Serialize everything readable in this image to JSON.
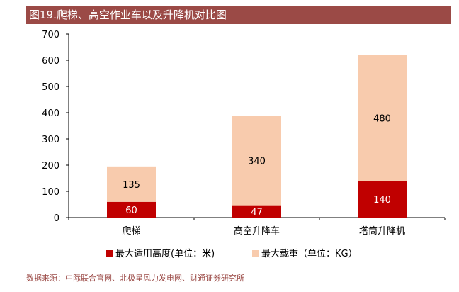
{
  "figure_title": "图19.爬梯、高空作业车以及升降机对比图",
  "source": "数据来源：中际联合官网、北极星风力发电网、财通证券研究所",
  "chart_data": {
    "type": "bar",
    "stacked": true,
    "categories": [
      "爬梯",
      "高空升降车",
      "塔筒升降机"
    ],
    "series": [
      {
        "name": "最大适用高度(单位：米)",
        "values": [
          60,
          47,
          140
        ],
        "color": "#c00000",
        "label_color": "#ffffff"
      },
      {
        "name": "最大载重（单位：KG）",
        "values": [
          135,
          340,
          480
        ],
        "color": "#f8cbad",
        "label_color": "#000000"
      }
    ],
    "ylim": [
      0,
      700
    ],
    "yticks": [
      "0",
      "100",
      "200",
      "300",
      "400",
      "500",
      "600",
      "700"
    ],
    "grid": false,
    "legend_position": "bottom"
  }
}
